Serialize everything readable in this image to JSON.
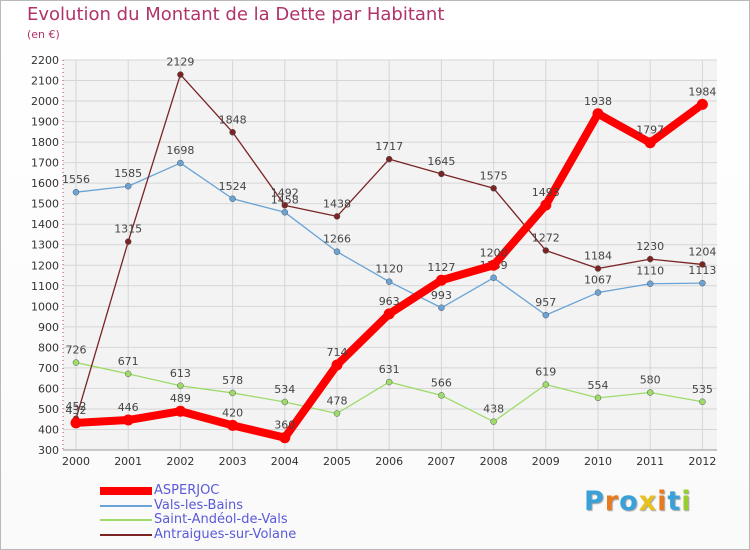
{
  "title": "Evolution du Montant de la Dette par Habitant",
  "subtitle": "(en €)",
  "logo": {
    "text": "Proxiti",
    "letters": [
      {
        "ch": "P",
        "color": "#3aa0d8"
      },
      {
        "ch": "r",
        "color": "#e87b20"
      },
      {
        "ch": "o",
        "color": "#3aa0d8"
      },
      {
        "ch": "x",
        "color": "#e8c21c"
      },
      {
        "ch": "i",
        "color": "#e87b20"
      },
      {
        "ch": "t",
        "color": "#3aa0d8"
      },
      {
        "ch": "i",
        "color": "#9acd32"
      }
    ]
  },
  "chart_data": {
    "type": "line",
    "title": "Evolution du Montant de la Dette par Habitant",
    "subtitle": "(en €)",
    "x": [
      "2000",
      "2001",
      "2002",
      "2003",
      "2004",
      "2005",
      "2006",
      "2007",
      "2008",
      "2009",
      "2010",
      "2011",
      "2012"
    ],
    "ylim": [
      300,
      2200
    ],
    "yticks": [
      300,
      400,
      500,
      600,
      700,
      800,
      900,
      1000,
      1100,
      1200,
      1300,
      1400,
      1500,
      1600,
      1700,
      1800,
      1900,
      2000,
      2100,
      2200
    ],
    "grid": true,
    "legend_position": "bottom-left",
    "series": [
      {
        "name": "ASPERJOC",
        "color": "#ff0000",
        "values": [
          432,
          446,
          489,
          420,
          360,
          714,
          963,
          1127,
          1200,
          1493,
          1938,
          1797,
          1984
        ]
      },
      {
        "name": "Vals-les-Bains",
        "color": "#6aa3d5",
        "values": [
          1556,
          1585,
          1698,
          1524,
          1458,
          1266,
          1120,
          993,
          1139,
          957,
          1067,
          1110,
          1113
        ]
      },
      {
        "name": "Saint-Andéol-de-Vals",
        "color": "#9edb6a",
        "values": [
          726,
          671,
          613,
          578,
          534,
          478,
          631,
          566,
          438,
          619,
          554,
          580,
          535
        ]
      },
      {
        "name": "Antraigues-sur-Volane",
        "color": "#7a2424",
        "values": [
          452,
          1315,
          2129,
          1848,
          1492,
          1438,
          1717,
          1645,
          1575,
          1272,
          1184,
          1230,
          1204
        ]
      }
    ]
  }
}
